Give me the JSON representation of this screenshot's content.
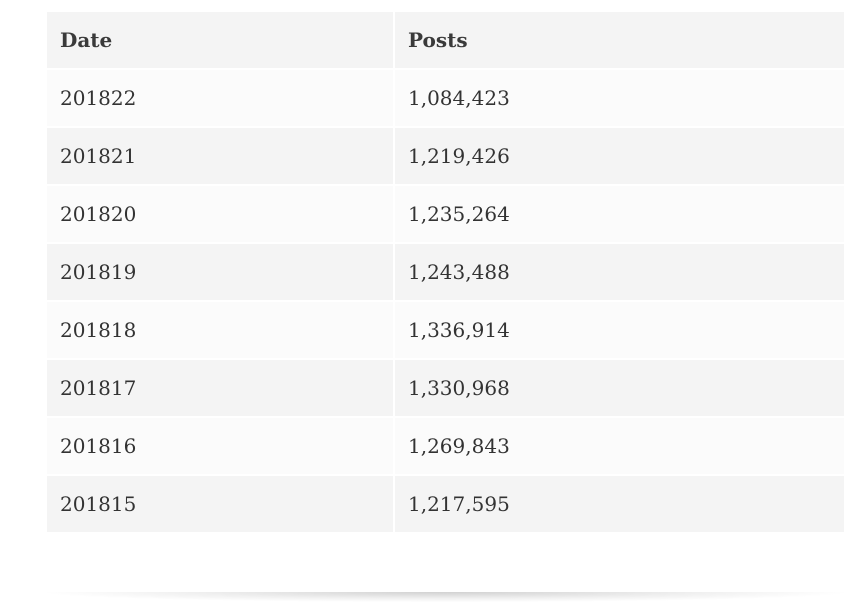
{
  "table": {
    "headers": [
      "Date",
      "Posts"
    ],
    "rows": [
      [
        "201822",
        "1,084,423"
      ],
      [
        "201821",
        "1,219,426"
      ],
      [
        "201820",
        "1,235,264"
      ],
      [
        "201819",
        "1,243,488"
      ],
      [
        "201818",
        "1,336,914"
      ],
      [
        "201817",
        "1,330,968"
      ],
      [
        "201816",
        "1,269,843"
      ],
      [
        "201815",
        "1,217,595"
      ]
    ]
  },
  "colors": {
    "header_bg": "#f4f4f4",
    "row_light": "#fbfbfb",
    "row_dark": "#f4f4f4",
    "text": "#333333"
  }
}
